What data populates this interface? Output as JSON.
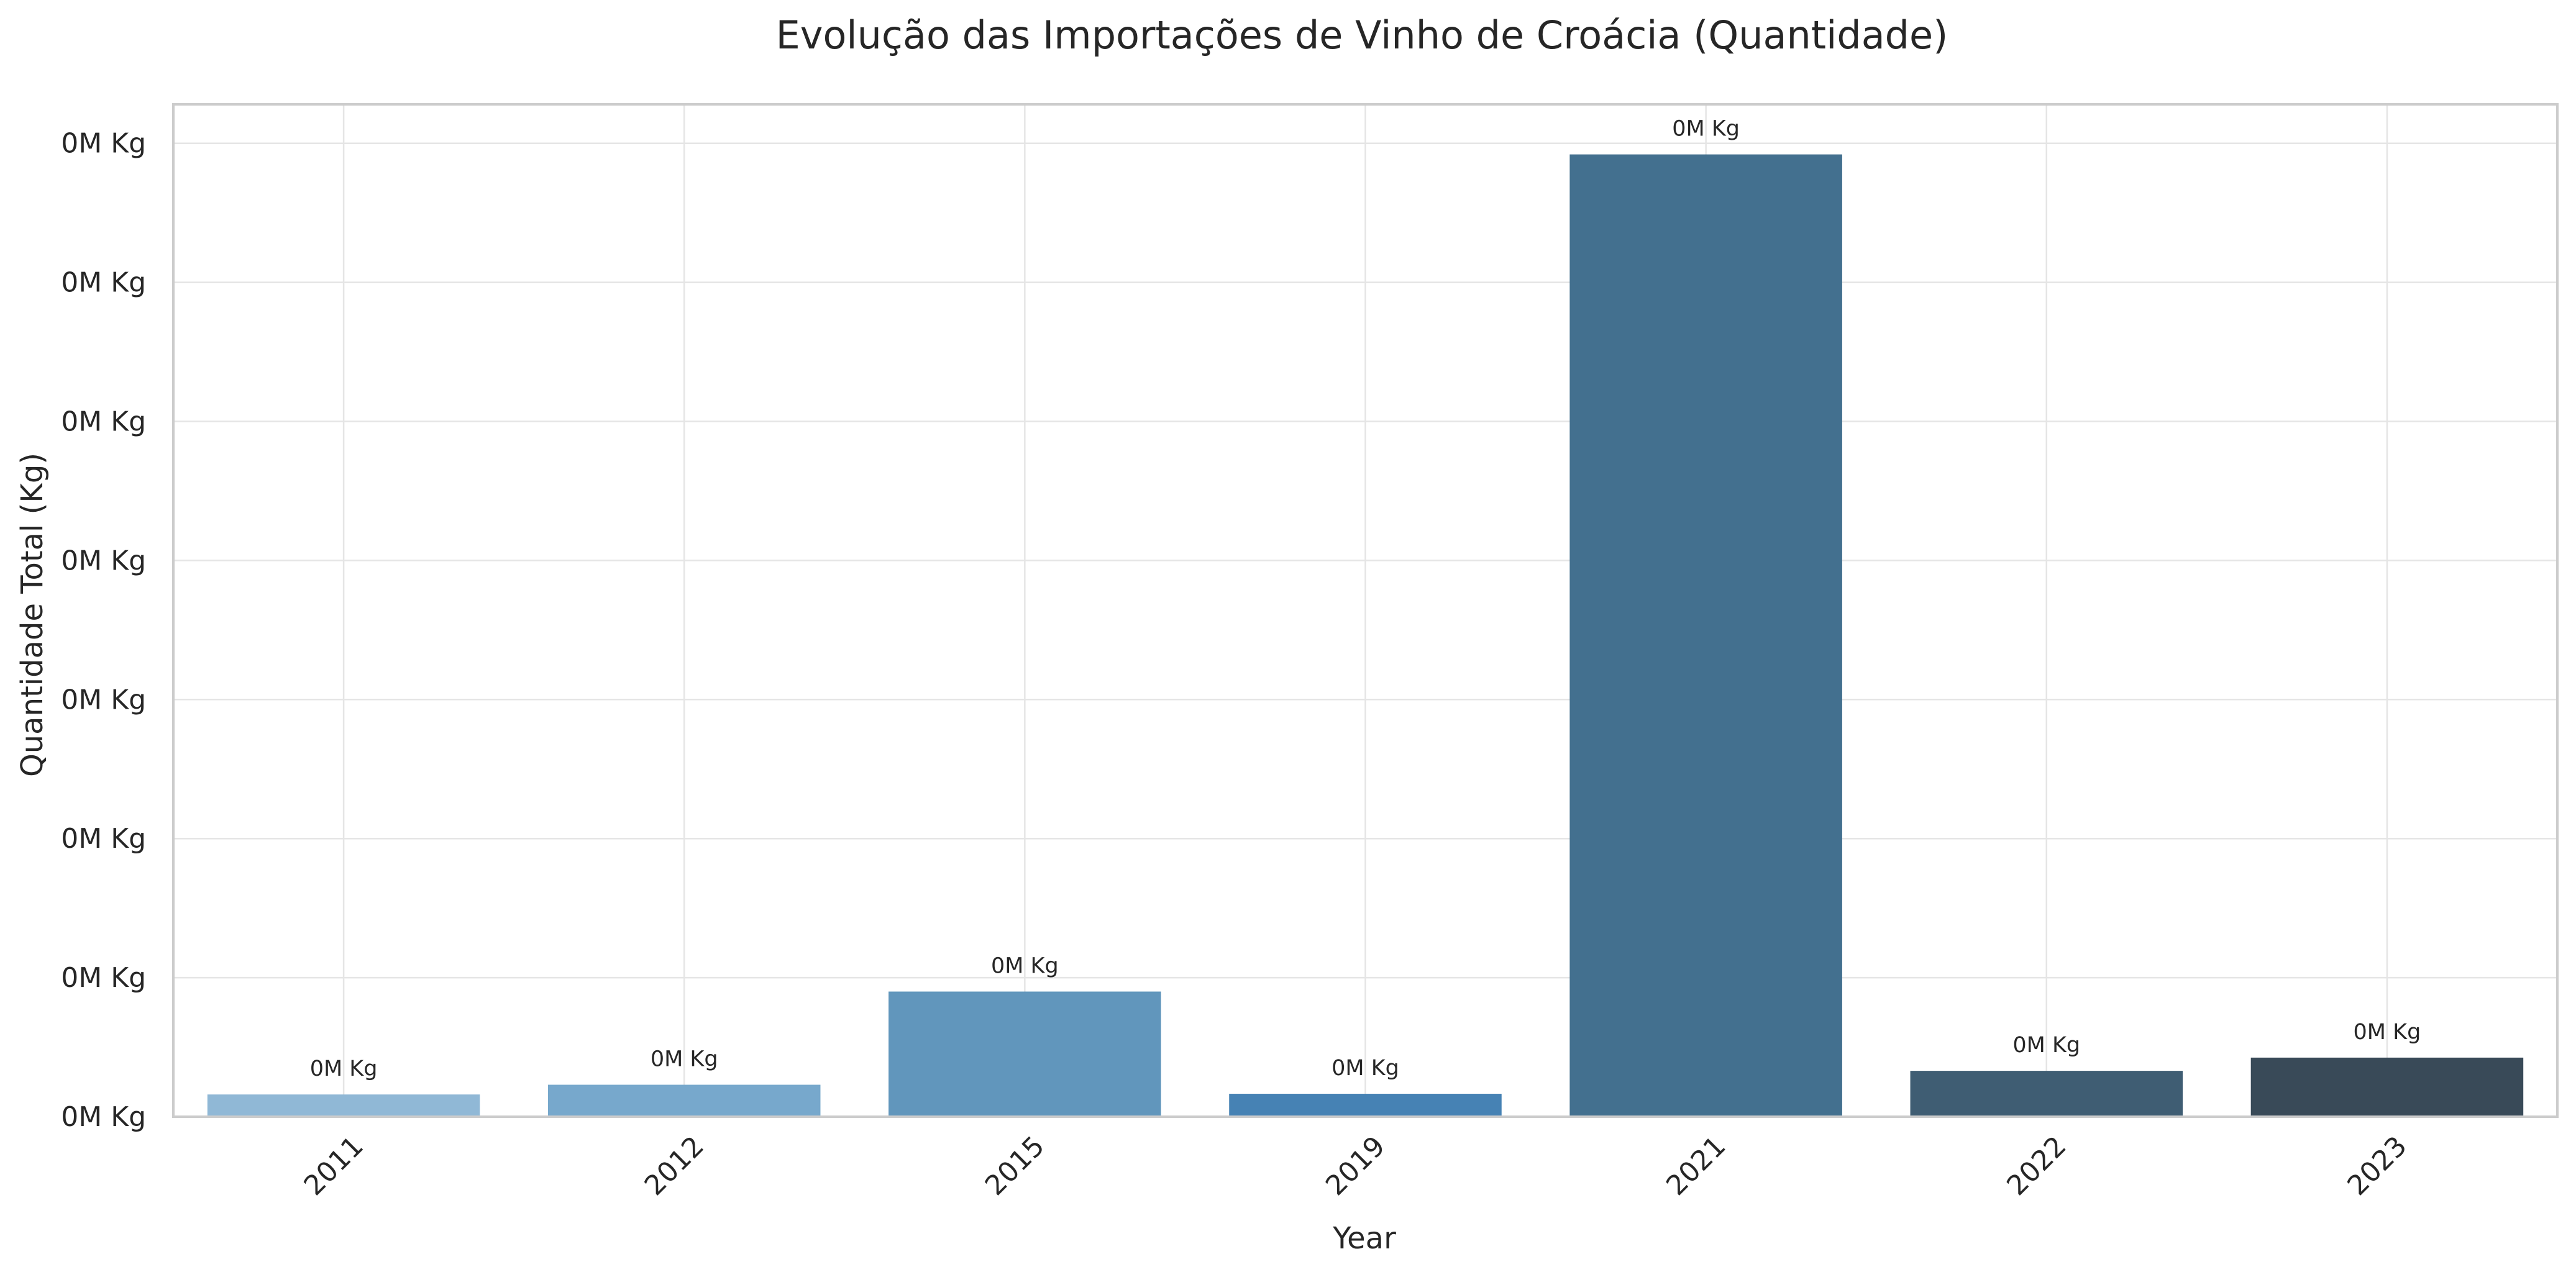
{
  "chart_data": {
    "type": "bar",
    "title": "Evolução das Importações de Vinho de Croácia (Quantidade)",
    "xlabel": "Year",
    "ylabel": "Quantidade Total (Kg)",
    "categories": [
      "2011",
      "2012",
      "2015",
      "2019",
      "2021",
      "2022",
      "2023"
    ],
    "values": [
      160,
      230,
      900,
      165,
      6920,
      330,
      425
    ],
    "value_labels": [
      "0M Kg",
      "0M Kg",
      "0M Kg",
      "0M Kg",
      "0M Kg",
      "0M Kg",
      "0M Kg"
    ],
    "y_ticks": [
      0,
      1000,
      2000,
      3000,
      4000,
      5000,
      6000,
      7000
    ],
    "y_tick_labels": [
      "0M Kg",
      "0M Kg",
      "0M Kg",
      "0M Kg",
      "0M Kg",
      "0M Kg",
      "0M Kg",
      "0M Kg"
    ],
    "ylim": [
      0,
      7280
    ],
    "grid": true,
    "legend": "none",
    "colors": [
      "#90b8d6",
      "#77a8cc",
      "#6196bc",
      "#4682b4",
      "#43708f",
      "#3f5d73",
      "#394a58"
    ]
  }
}
